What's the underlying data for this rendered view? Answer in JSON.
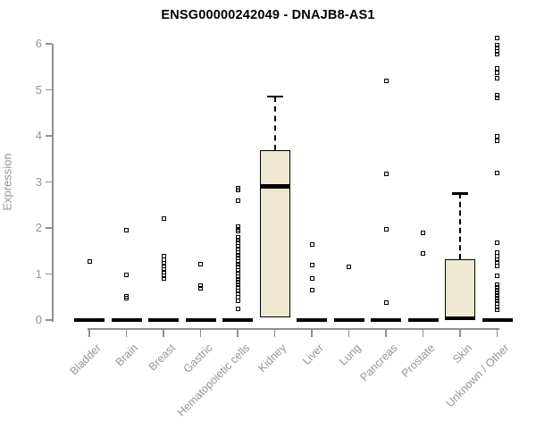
{
  "chart_data": {
    "type": "boxplot",
    "title": "ENSG00000242049 - DNAJB8-AS1",
    "ylabel": "Expression",
    "ylim": [
      0,
      6
    ],
    "yticks": [
      0,
      1,
      2,
      3,
      4,
      5,
      6
    ],
    "grid": false,
    "legend": "none",
    "colors": {
      "box_fill": "#EDE8CF",
      "box_border": "#000000",
      "median": "#000000",
      "outlier": "#000000",
      "axis": "#8f8f8f",
      "tick_label": "#949494",
      "title": "#000000"
    },
    "categories": [
      "Bladder",
      "Brain",
      "Breast",
      "Gastric",
      "Hematopoietic cells",
      "Kidney",
      "Liver",
      "Lung",
      "Pancreas",
      "Prostate",
      "Skin",
      "Unknown / Other"
    ],
    "boxes": [
      {
        "category": "Bladder",
        "q1": 0,
        "median": 0,
        "q3": 0,
        "whisker_low": 0,
        "whisker_high": 0,
        "outliers": [
          1.28
        ]
      },
      {
        "category": "Brain",
        "q1": 0,
        "median": 0,
        "q3": 0,
        "whisker_low": 0,
        "whisker_high": 0,
        "outliers": [
          1.95,
          0.98,
          0.52,
          0.47
        ]
      },
      {
        "category": "Breast",
        "q1": 0,
        "median": 0,
        "q3": 0,
        "whisker_low": 0,
        "whisker_high": 0,
        "outliers": [
          2.2,
          1.38,
          1.31,
          1.24,
          1.17,
          1.1,
          1.03,
          0.96,
          0.9
        ]
      },
      {
        "category": "Gastric",
        "q1": 0,
        "median": 0,
        "q3": 0,
        "whisker_low": 0,
        "whisker_high": 0,
        "outliers": [
          1.22,
          0.74,
          0.69
        ]
      },
      {
        "category": "Hematopoietic cells",
        "q1": 0,
        "median": 0,
        "q3": 0,
        "whisker_low": 0,
        "whisker_high": 0,
        "outliers": [
          2.86,
          2.82,
          2.6,
          2.02,
          1.97,
          1.93,
          1.8,
          1.74,
          1.67,
          1.6,
          1.54,
          1.47,
          1.41,
          1.34,
          1.28,
          1.21,
          1.15,
          1.08,
          1.02,
          0.95,
          0.89,
          0.82,
          0.76,
          0.7,
          0.63,
          0.57,
          0.5,
          0.42,
          0.25
        ]
      },
      {
        "category": "Kidney",
        "q1": 0.05,
        "median": 2.9,
        "q3": 3.68,
        "whisker_low": 0.05,
        "whisker_high": 4.85,
        "outliers": []
      },
      {
        "category": "Liver",
        "q1": 0,
        "median": 0,
        "q3": 0,
        "whisker_low": 0,
        "whisker_high": 0,
        "outliers": [
          1.65,
          1.2,
          0.9,
          0.66
        ]
      },
      {
        "category": "Lung",
        "q1": 0,
        "median": 0,
        "q3": 0,
        "whisker_low": 0,
        "whisker_high": 0,
        "outliers": [
          1.15
        ]
      },
      {
        "category": "Pancreas",
        "q1": 0,
        "median": 0,
        "q3": 0,
        "whisker_low": 0,
        "whisker_high": 0,
        "outliers": [
          5.2,
          3.18,
          1.98,
          0.38
        ]
      },
      {
        "category": "Prostate",
        "q1": 0,
        "median": 0,
        "q3": 0,
        "whisker_low": 0,
        "whisker_high": 0,
        "outliers": [
          1.9,
          1.45
        ]
      },
      {
        "category": "Skin",
        "q1": 0.02,
        "median": 0.04,
        "q3": 1.32,
        "whisker_low": 0.02,
        "whisker_high": 2.75,
        "outliers": []
      },
      {
        "category": "Unknown / Other",
        "q1": 0,
        "median": 0,
        "q3": 0,
        "whisker_low": 0,
        "whisker_high": 0,
        "outliers": [
          6.12,
          5.98,
          5.91,
          5.84,
          5.77,
          5.46,
          5.36,
          5.26,
          4.88,
          4.83,
          4.0,
          3.9,
          3.2,
          1.68,
          1.46,
          1.39,
          1.32,
          1.25,
          1.18,
          0.97,
          0.77,
          0.71,
          0.65,
          0.59,
          0.53,
          0.47,
          0.41,
          0.35,
          0.29,
          0.23
        ]
      }
    ]
  }
}
